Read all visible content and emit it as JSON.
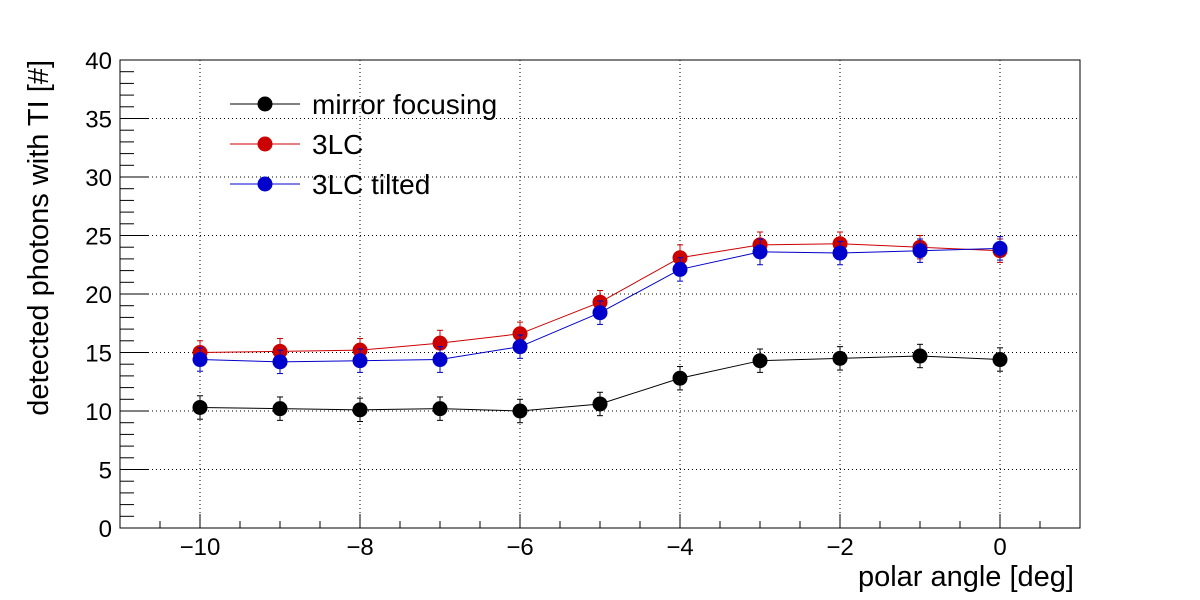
{
  "chart_data": {
    "type": "scatter",
    "title": "",
    "xlabel": "polar angle [deg]",
    "ylabel": "detected photons with TI [#]",
    "xlim": [
      -11,
      1
    ],
    "ylim": [
      0,
      40
    ],
    "x_ticks": [
      -10,
      -8,
      -6,
      -4,
      -2,
      0
    ],
    "x_tick_labels": [
      "−10",
      "−8",
      "−6",
      "−4",
      "−2",
      "0"
    ],
    "y_ticks": [
      0,
      5,
      10,
      15,
      20,
      25,
      30,
      35,
      40
    ],
    "y_tick_labels": [
      "0",
      "5",
      "10",
      "15",
      "20",
      "25",
      "30",
      "35",
      "40"
    ],
    "grid": true,
    "legend_position": "top-left",
    "x": [
      -10,
      -9,
      -8,
      -7,
      -6,
      -5,
      -4,
      -3,
      -2,
      -1,
      0
    ],
    "series": [
      {
        "name": "mirror focusing",
        "color": "#000000",
        "values": [
          10.3,
          10.2,
          10.1,
          10.2,
          10.0,
          10.6,
          12.8,
          14.3,
          14.5,
          14.7,
          14.4
        ],
        "errors": [
          1.0,
          1.0,
          1.0,
          1.0,
          1.0,
          1.0,
          1.0,
          1.0,
          1.0,
          1.0,
          1.0
        ]
      },
      {
        "name": "3LC",
        "color": "#cc0000",
        "values": [
          15.0,
          15.1,
          15.2,
          15.8,
          16.6,
          19.3,
          23.1,
          24.2,
          24.3,
          24.0,
          23.7
        ],
        "errors": [
          1.0,
          1.1,
          1.0,
          1.1,
          1.0,
          1.0,
          1.1,
          1.1,
          1.0,
          1.0,
          1.0
        ]
      },
      {
        "name": "3LC tilted",
        "color": "#0000cc",
        "values": [
          14.4,
          14.2,
          14.3,
          14.4,
          15.5,
          18.4,
          22.1,
          23.6,
          23.5,
          23.7,
          23.9
        ],
        "errors": [
          1.0,
          1.0,
          1.0,
          1.1,
          1.0,
          1.0,
          1.0,
          1.1,
          1.0,
          1.0,
          1.0
        ]
      }
    ]
  }
}
